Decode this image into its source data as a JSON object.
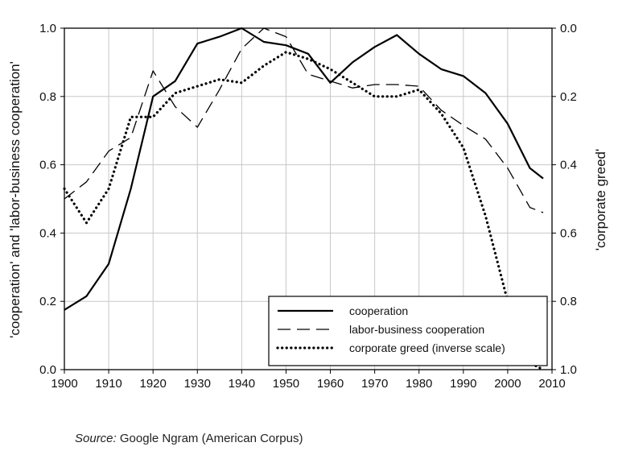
{
  "chart_data": {
    "type": "line",
    "title": "",
    "xlabel": "",
    "ylabel": "'cooperation' and 'labor-business cooperation'",
    "y2label": "'corporate greed'",
    "xlim": [
      1900,
      2010
    ],
    "ylim": [
      0.0,
      1.0
    ],
    "y2lim": [
      0.0,
      1.0
    ],
    "y2_inverted": true,
    "grid": true,
    "legend_position": "bottom-right",
    "x_ticks": [
      "1900",
      "1910",
      "1920",
      "1930",
      "1940",
      "1950",
      "1960",
      "1970",
      "1980",
      "1990",
      "2000",
      "2010"
    ],
    "y_ticks": [
      "0.0",
      "0.2",
      "0.4",
      "0.6",
      "0.8",
      "1.0"
    ],
    "y2_ticks": [
      "0.0",
      "0.2",
      "0.4",
      "0.6",
      "0.8",
      "1.0"
    ],
    "series": [
      {
        "name": "cooperation",
        "style": "solid",
        "axis": "left",
        "x": [
          1900,
          1905,
          1910,
          1915,
          1920,
          1925,
          1930,
          1935,
          1940,
          1945,
          1950,
          1955,
          1960,
          1965,
          1970,
          1975,
          1980,
          1985,
          1990,
          1995,
          2000,
          2005,
          2008
        ],
        "y": [
          0.175,
          0.215,
          0.31,
          0.53,
          0.8,
          0.845,
          0.955,
          0.975,
          1.0,
          0.96,
          0.95,
          0.925,
          0.84,
          0.9,
          0.945,
          0.98,
          0.925,
          0.88,
          0.86,
          0.81,
          0.72,
          0.59,
          0.56
        ]
      },
      {
        "name": "labor-business cooperation",
        "style": "dashed",
        "axis": "left",
        "x": [
          1900,
          1905,
          1910,
          1915,
          1920,
          1925,
          1930,
          1935,
          1940,
          1945,
          1950,
          1955,
          1960,
          1965,
          1970,
          1975,
          1980,
          1985,
          1990,
          1995,
          2000,
          2005,
          2008
        ],
        "y": [
          0.5,
          0.55,
          0.64,
          0.68,
          0.875,
          0.77,
          0.71,
          0.82,
          0.94,
          1.0,
          0.975,
          0.865,
          0.845,
          0.825,
          0.835,
          0.835,
          0.83,
          0.76,
          0.715,
          0.675,
          0.59,
          0.475,
          0.46
        ]
      },
      {
        "name": "corporate greed (inverse scale)",
        "style": "dotted",
        "axis": "right",
        "x": [
          1900,
          1905,
          1910,
          1915,
          1920,
          1925,
          1930,
          1935,
          1940,
          1945,
          1950,
          1955,
          1960,
          1965,
          1970,
          1975,
          1980,
          1985,
          1990,
          1995,
          2000,
          2005,
          2008
        ],
        "y": [
          0.47,
          0.57,
          0.47,
          0.26,
          0.26,
          0.19,
          0.17,
          0.15,
          0.16,
          0.11,
          0.07,
          0.09,
          0.12,
          0.16,
          0.2,
          0.2,
          0.18,
          0.25,
          0.35,
          0.55,
          0.8,
          0.98,
          1.0
        ]
      }
    ]
  },
  "source": {
    "label": "Source:",
    "text": "Google Ngram (American Corpus)"
  }
}
